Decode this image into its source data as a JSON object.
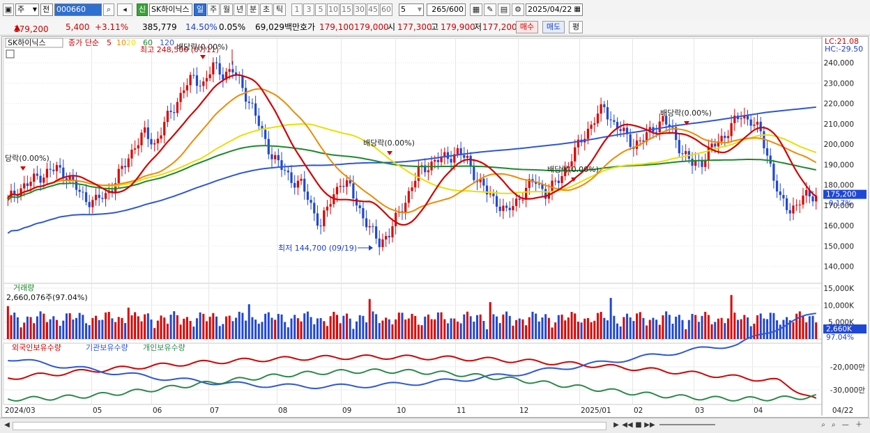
{
  "toolbar": {
    "market": "주",
    "price_type": "전",
    "code": "000660",
    "badge": "신",
    "stock_name": "SK하이닉스",
    "periods": [
      "일",
      "주",
      "월",
      "년",
      "분",
      "초",
      "틱"
    ],
    "active_period": "일",
    "intervals": [
      "1",
      "3",
      "5",
      "10",
      "15",
      "30",
      "45",
      "60"
    ],
    "interval_value": "5",
    "count": "265",
    "count_max": "/600",
    "date": "2025/04/22"
  },
  "info": {
    "price": "179,200",
    "change": "5,400",
    "change_pct": "+3.11%",
    "volume": "385,779",
    "vol_ratio": "14.50%",
    "turnover": "0.05%",
    "amount": "69,029백만",
    "ask_label": "호가",
    "ask1": "179,100",
    "ask2": "179,000",
    "open_label": "시",
    "open": "177,300",
    "high_label": "고",
    "high": "179,900",
    "low_label": "저",
    "low": "177,200",
    "buy_btn": "매수",
    "sell_btn": "매도",
    "eval_btn": "평"
  },
  "price_panel": {
    "title": "SK하이닉스",
    "ma_label": "종가 단순",
    "ma_periods": [
      "5",
      "10",
      "20",
      "60",
      "120"
    ],
    "ma_colors": [
      "#d40000",
      "#f08a00",
      "#e8e000",
      "#1a8a2a",
      "#2e56d8"
    ],
    "lc": "LC:21.08",
    "hc": "HC:-29.50",
    "max_label": "최고 248,500 (07/11)",
    "min_label": "최저 144,700 (09/19)",
    "last_price": "175,200",
    "last_pct": "-0.17%",
    "div_labels": [
      "당락(0.00%)",
      "배당락(0.00%)",
      "배당락(0.00%)",
      "배당락(0.00%)",
      "배당락(0.00%)"
    ]
  },
  "volume_panel": {
    "title": "거래량",
    "value": "2,660,076주(97.04%)",
    "last": "2,660K",
    "last_pct": "97.04%"
  },
  "holdings_panel": {
    "series": [
      "외국인보유수량",
      "기관보유수량",
      "개인보유수량"
    ],
    "colors": [
      "#d40000",
      "#2e56d8",
      "#2a8a4a"
    ]
  },
  "axis": {
    "x_labels": [
      "2024/03",
      "05",
      "06",
      "07",
      "08",
      "09",
      "10",
      "11",
      "12",
      "2025/01",
      "02",
      "03",
      "04",
      "04/22"
    ]
  },
  "chart_data": [
    {
      "type": "candlestick",
      "title": "SK하이닉스",
      "y_ticks": [
        140000,
        150000,
        160000,
        170000,
        180000,
        190000,
        200000,
        210000,
        220000,
        230000,
        240000
      ],
      "ylim": [
        133000,
        250000
      ],
      "annotations": {
        "high": 248500,
        "high_date": "07/11",
        "low": 144700,
        "low_date": "09/19"
      },
      "close": [
        172000,
        178000,
        180000,
        184000,
        186000,
        188000,
        185000,
        178000,
        173000,
        172000,
        175000,
        182000,
        190000,
        200000,
        205000,
        200000,
        210000,
        218000,
        228000,
        232000,
        230000,
        238000,
        235000,
        236000,
        228000,
        218000,
        205000,
        195000,
        188000,
        183000,
        180000,
        170000,
        160000,
        172000,
        182000,
        178000,
        168000,
        158000,
        152000,
        156000,
        166000,
        176000,
        186000,
        190000,
        192000,
        194000,
        196000,
        192000,
        183000,
        176000,
        172000,
        166000,
        172000,
        178000,
        182000,
        176000,
        180000,
        188000,
        196000,
        205000,
        212000,
        218000,
        210000,
        205000,
        200000,
        202000,
        208000,
        212000,
        206000,
        196000,
        190000,
        192000,
        198000,
        203000,
        209000,
        214000,
        212000,
        205000,
        190000,
        172000,
        168000,
        172000,
        175000
      ]
    },
    {
      "type": "bar",
      "title": "거래량",
      "y_ticks": [
        "5,000K",
        "10,000K",
        "15,000K"
      ],
      "last": 2660076
    },
    {
      "type": "line",
      "series_names": [
        "외국인보유수량",
        "기관보유수량",
        "개인보유수량"
      ],
      "y_ticks": [
        "-20,000만",
        "-30,000만"
      ]
    }
  ],
  "bottom": {
    "nav": [
      "▶",
      "◀◀",
      "■",
      "▶▶"
    ],
    "tools": [
      "zoom-out",
      "zoom-in",
      "minus",
      "plus",
      "settings"
    ]
  }
}
